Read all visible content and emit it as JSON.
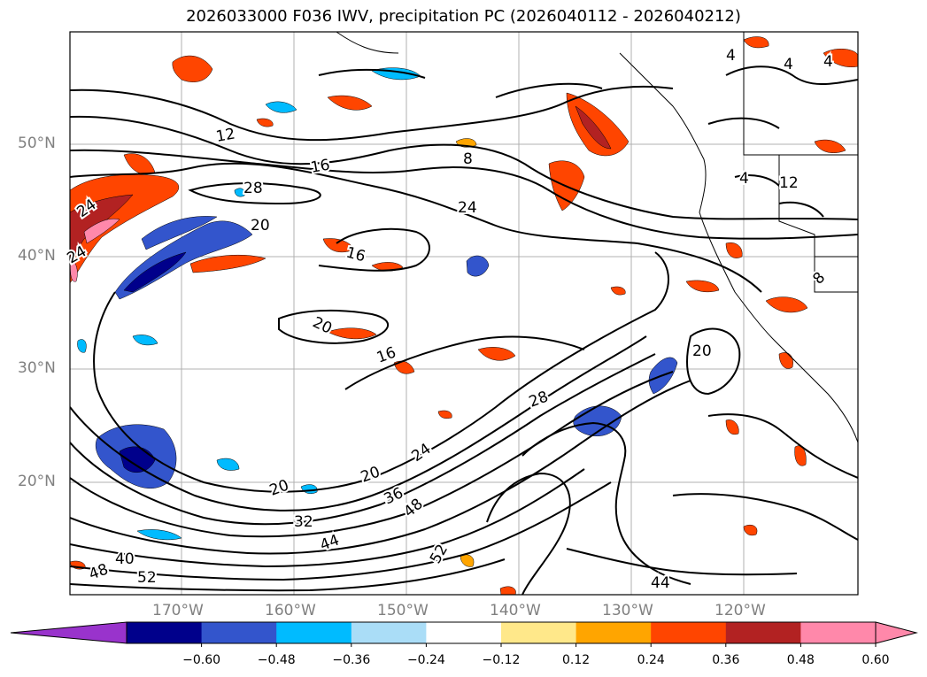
{
  "title": "2026033000 F036 IWV, precipitation PC (2026040112 - 2026040212)",
  "lat_labels": [
    "50°N",
    "40°N",
    "30°N",
    "20°N"
  ],
  "lon_labels": [
    "170°W",
    "160°W",
    "150°W",
    "140°W",
    "130°W",
    "120°W"
  ],
  "contour_labels": [
    "12",
    "16",
    "28",
    "20",
    "16",
    "20",
    "16",
    "24",
    "8",
    "24",
    "28",
    "24",
    "20",
    "20",
    "36",
    "48",
    "32",
    "44",
    "40",
    "48",
    "52",
    "52",
    "44",
    "20",
    "4",
    "4",
    "4",
    "4",
    "12",
    "8",
    "24"
  ],
  "colorbar": {
    "ticks": [
      "−0.60",
      "−0.48",
      "−0.36",
      "−0.24",
      "−0.12",
      "0.12",
      "0.24",
      "0.36",
      "0.48",
      "0.60"
    ],
    "colors": [
      "#9933cc",
      "#00008b",
      "#3355cc",
      "#00bbff",
      "#aaddf7",
      "#ffffff",
      "#ffe88a",
      "#ffa500",
      "#ff4500",
      "#b22222",
      "#ff88aa",
      "#ff88aa"
    ]
  }
}
